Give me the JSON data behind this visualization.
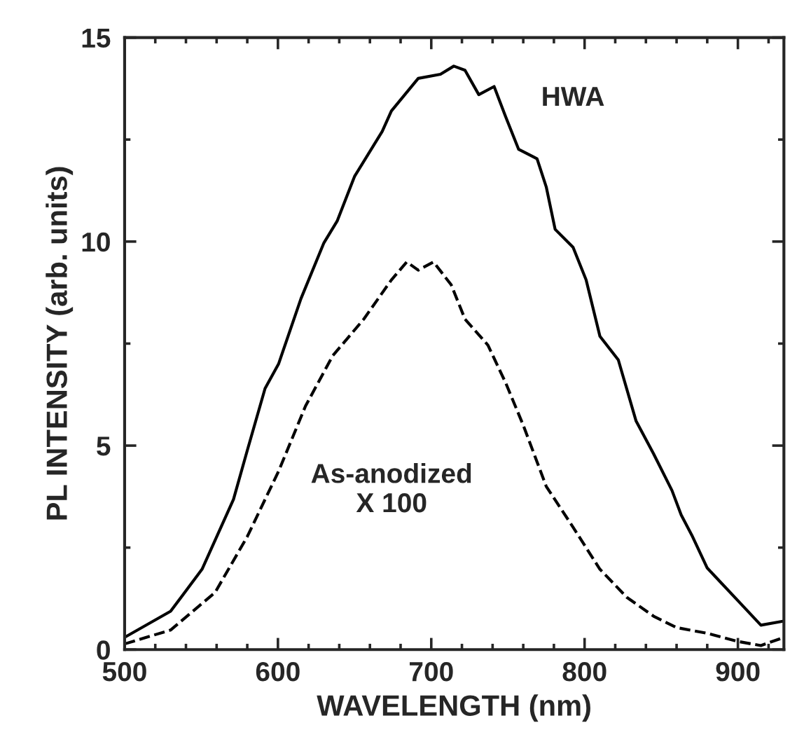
{
  "chart_data": {
    "type": "line",
    "xlabel": "WAVELENGTH (nm)",
    "ylabel": "PL INTENSITY (arb. units)",
    "xlim": [
      500,
      930
    ],
    "xticks": [
      500,
      600,
      700,
      800,
      900
    ],
    "ylim": [
      0,
      15
    ],
    "yticks": [
      0,
      5,
      10,
      15
    ],
    "grid": false,
    "legend": false,
    "marker": "none",
    "series": [
      {
        "color": "#000000",
        "line_style": "solid",
        "x": [
          500,
          530,
          550.5,
          571,
          580,
          591.6,
          600.4,
          615,
          630,
          638.6,
          650,
          668,
          674,
          691.5,
          706,
          714.7,
          722,
          731,
          741,
          748.5,
          757,
          769,
          775,
          780.8,
          792.5,
          801,
          810,
          822,
          833.6,
          845,
          857,
          863,
          870,
          880,
          900,
          915,
          930
        ],
        "values": [
          0.3,
          0.94,
          1.97,
          3.68,
          4.88,
          6.4,
          7.0,
          8.6,
          9.97,
          10.5,
          11.6,
          12.7,
          13.2,
          14.0,
          14.1,
          14.3,
          14.2,
          13.6,
          13.8,
          13.06,
          12.26,
          12.03,
          11.34,
          10.3,
          9.86,
          9.06,
          7.68,
          7.1,
          5.6,
          4.8,
          3.9,
          3.3,
          2.8,
          2.0,
          1.2,
          0.6,
          0.7
        ]
      },
      {
        "color": "#000000",
        "line_style": "dashed",
        "x": [
          500,
          530,
          559,
          580,
          600.4,
          618,
          635.7,
          656,
          674,
          684,
          691.5,
          701.5,
          713,
          722,
          737,
          748.5,
          760,
          775,
          792.5,
          810,
          827.6,
          845,
          860,
          880,
          900,
          915,
          930
        ],
        "values": [
          0.14,
          0.48,
          1.4,
          2.77,
          4.37,
          5.97,
          7.2,
          8.1,
          9.06,
          9.5,
          9.3,
          9.5,
          8.94,
          8.1,
          7.46,
          6.54,
          5.5,
          4.0,
          3.0,
          1.97,
          1.28,
          0.82,
          0.54,
          0.4,
          0.2,
          0.1,
          0.3
        ]
      }
    ],
    "annotations": [
      "HWA",
      "As-anodized\nX 100"
    ]
  }
}
